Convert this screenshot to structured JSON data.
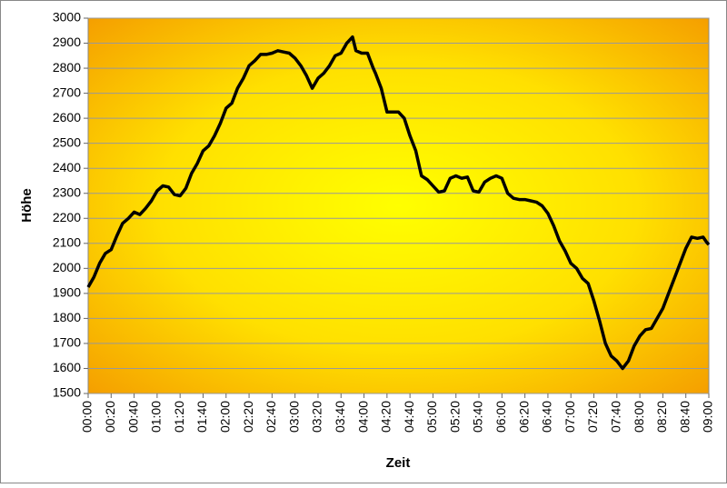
{
  "chart_data": {
    "type": "line",
    "x_label": "Zeit",
    "y_label": "Höhe",
    "color": "#000000",
    "grid": true,
    "x": [
      0,
      5,
      10,
      15,
      20,
      25,
      30,
      35,
      40,
      45,
      50,
      55,
      60,
      65,
      70,
      75,
      80,
      85,
      90,
      95,
      100,
      105,
      110,
      115,
      120,
      125,
      130,
      135,
      140,
      145,
      150,
      155,
      160,
      165,
      170,
      175,
      180,
      185,
      190,
      195,
      200,
      205,
      210,
      215,
      220,
      225,
      230,
      233,
      238,
      243,
      248,
      250,
      255,
      260,
      265,
      270,
      275,
      280,
      285,
      290,
      295,
      300,
      305,
      310,
      315,
      320,
      325,
      330,
      335,
      340,
      345,
      350,
      355,
      360,
      365,
      370,
      375,
      380,
      385,
      390,
      395,
      400,
      405,
      410,
      415,
      420,
      425,
      430,
      435,
      440,
      445,
      450,
      455,
      460,
      465,
      470,
      475,
      480,
      485,
      490,
      495,
      500,
      505,
      510,
      515,
      520,
      525,
      530,
      535,
      538,
      540
    ],
    "values": [
      1925,
      1965,
      2020,
      2060,
      2075,
      2130,
      2180,
      2200,
      2225,
      2215,
      2240,
      2270,
      2310,
      2330,
      2325,
      2295,
      2290,
      2320,
      2380,
      2420,
      2470,
      2490,
      2530,
      2580,
      2640,
      2660,
      2720,
      2760,
      2810,
      2830,
      2855,
      2855,
      2860,
      2870,
      2865,
      2860,
      2840,
      2810,
      2770,
      2720,
      2760,
      2780,
      2810,
      2850,
      2860,
      2900,
      2925,
      2870,
      2860,
      2860,
      2800,
      2780,
      2720,
      2625,
      2625,
      2625,
      2600,
      2530,
      2470,
      2370,
      2355,
      2330,
      2305,
      2310,
      2360,
      2370,
      2360,
      2365,
      2310,
      2305,
      2345,
      2360,
      2370,
      2360,
      2300,
      2280,
      2275,
      2275,
      2270,
      2265,
      2250,
      2220,
      2170,
      2110,
      2070,
      2020,
      2000,
      1960,
      1940,
      1870,
      1790,
      1700,
      1650,
      1630,
      1600,
      1630,
      1690,
      1730,
      1755,
      1760,
      1800,
      1840,
      1900,
      1960,
      2020,
      2080,
      2125,
      2120,
      2125,
      2105,
      2095
    ],
    "xlim": [
      0,
      540
    ],
    "xticks": [
      {
        "value": 0,
        "label": "00:00"
      },
      {
        "value": 20,
        "label": "00:20"
      },
      {
        "value": 40,
        "label": "00:40"
      },
      {
        "value": 60,
        "label": "01:00"
      },
      {
        "value": 80,
        "label": "01:20"
      },
      {
        "value": 100,
        "label": "01:40"
      },
      {
        "value": 120,
        "label": "02:00"
      },
      {
        "value": 140,
        "label": "02:20"
      },
      {
        "value": 160,
        "label": "02:40"
      },
      {
        "value": 180,
        "label": "03:00"
      },
      {
        "value": 200,
        "label": "03:20"
      },
      {
        "value": 220,
        "label": "03:40"
      },
      {
        "value": 240,
        "label": "04:00"
      },
      {
        "value": 260,
        "label": "04:20"
      },
      {
        "value": 280,
        "label": "04:40"
      },
      {
        "value": 300,
        "label": "05:00"
      },
      {
        "value": 320,
        "label": "05:20"
      },
      {
        "value": 340,
        "label": "05:40"
      },
      {
        "value": 360,
        "label": "06:00"
      },
      {
        "value": 380,
        "label": "06:20"
      },
      {
        "value": 400,
        "label": "06:40"
      },
      {
        "value": 420,
        "label": "07:00"
      },
      {
        "value": 440,
        "label": "07:20"
      },
      {
        "value": 460,
        "label": "07:40"
      },
      {
        "value": 480,
        "label": "08:00"
      },
      {
        "value": 500,
        "label": "08:20"
      },
      {
        "value": 520,
        "label": "08:40"
      },
      {
        "value": 540,
        "label": "09:00"
      }
    ],
    "ylim": [
      1500,
      3000
    ],
    "yticks": [
      1500,
      1600,
      1700,
      1800,
      1900,
      2000,
      2100,
      2200,
      2300,
      2400,
      2500,
      2600,
      2700,
      2800,
      2900,
      3000
    ]
  }
}
